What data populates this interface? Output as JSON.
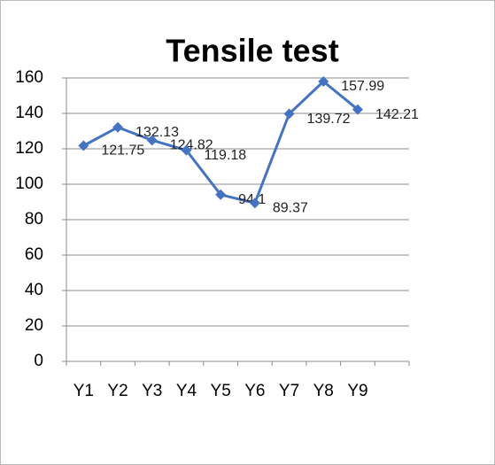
{
  "chart_data": {
    "type": "line",
    "title": "Tensile test",
    "categories": [
      "Y1",
      "Y2",
      "Y3",
      "Y4",
      "Y5",
      "Y6",
      "Y7",
      "Y8",
      "Y9",
      null
    ],
    "series": [
      {
        "color": "#4472c4",
        "values": [
          121.75,
          132.13,
          124.82,
          119.18,
          94.1,
          89.37,
          139.72,
          157.99,
          142.21,
          null
        ]
      }
    ],
    "ylim": [
      0,
      160
    ],
    "yticks": [
      0,
      20,
      40,
      60,
      80,
      100,
      120,
      140,
      160
    ],
    "grid": true
  }
}
